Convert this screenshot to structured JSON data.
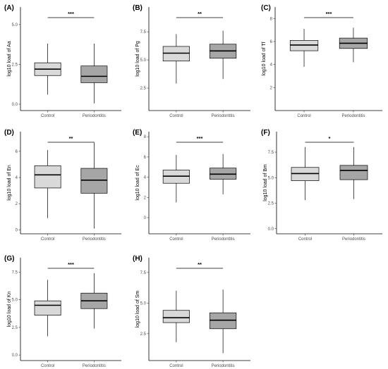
{
  "chart_data": [
    {
      "type": "box",
      "label": "(A)",
      "ylabel": "log10 load of Aa",
      "ylim": [
        -0.4,
        6.1
      ],
      "yticks": [
        {
          "v": 0,
          "t": "0.0"
        },
        {
          "v": 2.5,
          "t": "2.5"
        },
        {
          "v": 5,
          "t": "5.0"
        }
      ],
      "categories": [
        "Control",
        "Periodontitis"
      ],
      "boxes": [
        {
          "min": 0.6,
          "q1": 1.8,
          "median": 2.2,
          "q3": 2.6,
          "max": 3.8,
          "fill": "#d9d9d9"
        },
        {
          "min": 0.05,
          "q1": 1.35,
          "median": 1.75,
          "q3": 2.4,
          "max": 3.8,
          "fill": "#a6a6a6"
        }
      ],
      "significance": "***"
    },
    {
      "type": "box",
      "label": "(B)",
      "ylabel": "log10 load of Pg",
      "ylim": [
        0.5,
        9.7
      ],
      "yticks": [
        {
          "v": 2.5,
          "t": "2.5"
        },
        {
          "v": 5,
          "t": "5.0"
        },
        {
          "v": 7.5,
          "t": "7.5"
        }
      ],
      "categories": [
        "Control",
        "Periodontitis"
      ],
      "boxes": [
        {
          "min": 2.9,
          "q1": 4.9,
          "median": 5.6,
          "q3": 6.2,
          "max": 7.3,
          "fill": "#d9d9d9"
        },
        {
          "min": 3.3,
          "q1": 5.15,
          "median": 5.8,
          "q3": 6.4,
          "max": 7.6,
          "fill": "#a6a6a6"
        }
      ],
      "significance": "**"
    },
    {
      "type": "box",
      "label": "(C)",
      "ylabel": "log10 load of Tf",
      "ylim": [
        0.0,
        9.0
      ],
      "yticks": [
        {
          "v": 2,
          "t": "2"
        },
        {
          "v": 4,
          "t": "4"
        },
        {
          "v": 6,
          "t": "6"
        },
        {
          "v": 8,
          "t": "8"
        }
      ],
      "categories": [
        "Control",
        "Periodontitis"
      ],
      "boxes": [
        {
          "min": 3.8,
          "q1": 5.2,
          "median": 5.7,
          "q3": 6.1,
          "max": 7.1,
          "fill": "#d9d9d9"
        },
        {
          "min": 4.2,
          "q1": 5.4,
          "median": 5.85,
          "q3": 6.3,
          "max": 7.2,
          "fill": "#a6a6a6"
        }
      ],
      "significance": "***"
    },
    {
      "type": "box",
      "label": "(D)",
      "ylabel": "log10 load of En",
      "ylim": [
        -0.3,
        7.5
      ],
      "yticks": [
        {
          "v": 0,
          "t": "0"
        },
        {
          "v": 2,
          "t": "2"
        },
        {
          "v": 4,
          "t": "4"
        },
        {
          "v": 6,
          "t": "6"
        }
      ],
      "categories": [
        "Control",
        "Periodontitis"
      ],
      "boxes": [
        {
          "min": 0.9,
          "q1": 3.2,
          "median": 4.2,
          "q3": 4.9,
          "max": 6.1,
          "fill": "#d9d9d9"
        },
        {
          "min": 0.1,
          "q1": 2.8,
          "median": 3.8,
          "q3": 4.7,
          "max": 6.7,
          "fill": "#a6a6a6"
        }
      ],
      "significance": "**"
    },
    {
      "type": "box",
      "label": "(E)",
      "ylabel": "log10 load of Ec",
      "ylim": [
        -1.6,
        8.5
      ],
      "yticks": [
        {
          "v": 0,
          "t": "0"
        },
        {
          "v": 2,
          "t": "2"
        },
        {
          "v": 4,
          "t": "4"
        },
        {
          "v": 6,
          "t": "6"
        },
        {
          "v": 8,
          "t": "8"
        }
      ],
      "categories": [
        "Control",
        "Periodontitis"
      ],
      "boxes": [
        {
          "min": 1.5,
          "q1": 3.4,
          "median": 4.1,
          "q3": 4.7,
          "max": 6.2,
          "fill": "#d9d9d9"
        },
        {
          "min": 2.3,
          "q1": 3.8,
          "median": 4.3,
          "q3": 4.9,
          "max": 6.3,
          "fill": "#a6a6a6"
        }
      ],
      "significance": "***"
    },
    {
      "type": "box",
      "label": "(F)",
      "ylabel": "log10 load of Bm",
      "ylim": [
        -0.5,
        9.5
      ],
      "yticks": [
        {
          "v": 0,
          "t": "0.0"
        },
        {
          "v": 2.5,
          "t": "2.5"
        },
        {
          "v": 5,
          "t": "5.0"
        },
        {
          "v": 7.5,
          "t": "7.5"
        }
      ],
      "categories": [
        "Control",
        "Periodontitis"
      ],
      "boxes": [
        {
          "min": 2.8,
          "q1": 4.7,
          "median": 5.4,
          "q3": 6.0,
          "max": 8.0,
          "fill": "#d9d9d9"
        },
        {
          "min": 2.9,
          "q1": 4.8,
          "median": 5.7,
          "q3": 6.2,
          "max": 8.0,
          "fill": "#a6a6a6"
        }
      ],
      "significance": "*"
    },
    {
      "type": "box",
      "label": "(G)",
      "ylabel": "log10 load of Kn",
      "ylim": [
        -0.5,
        8.8
      ],
      "yticks": [
        {
          "v": 0,
          "t": "0.0"
        },
        {
          "v": 2.5,
          "t": "2.5"
        },
        {
          "v": 5,
          "t": "5.0"
        },
        {
          "v": 7.5,
          "t": "7.5"
        }
      ],
      "categories": [
        "Control",
        "Periodontitis"
      ],
      "boxes": [
        {
          "min": 1.7,
          "q1": 3.6,
          "median": 4.5,
          "q3": 4.9,
          "max": 6.8,
          "fill": "#d9d9d9"
        },
        {
          "min": 2.4,
          "q1": 4.2,
          "median": 4.9,
          "q3": 5.6,
          "max": 7.4,
          "fill": "#a6a6a6"
        }
      ],
      "significance": "***"
    },
    {
      "type": "box",
      "label": "(H)",
      "ylabel": "log10 load of Sm",
      "ylim": [
        0.3,
        8.7
      ],
      "yticks": [
        {
          "v": 2.5,
          "t": "2.5"
        },
        {
          "v": 5,
          "t": "5.0"
        },
        {
          "v": 7.5,
          "t": "7.5"
        }
      ],
      "categories": [
        "Control",
        "Periodontitis"
      ],
      "boxes": [
        {
          "min": 1.8,
          "q1": 3.4,
          "median": 3.8,
          "q3": 4.4,
          "max": 6.0,
          "fill": "#d9d9d9"
        },
        {
          "min": 0.9,
          "q1": 2.9,
          "median": 3.6,
          "q3": 4.2,
          "max": 6.1,
          "fill": "#a6a6a6"
        }
      ],
      "significance": "**"
    }
  ]
}
